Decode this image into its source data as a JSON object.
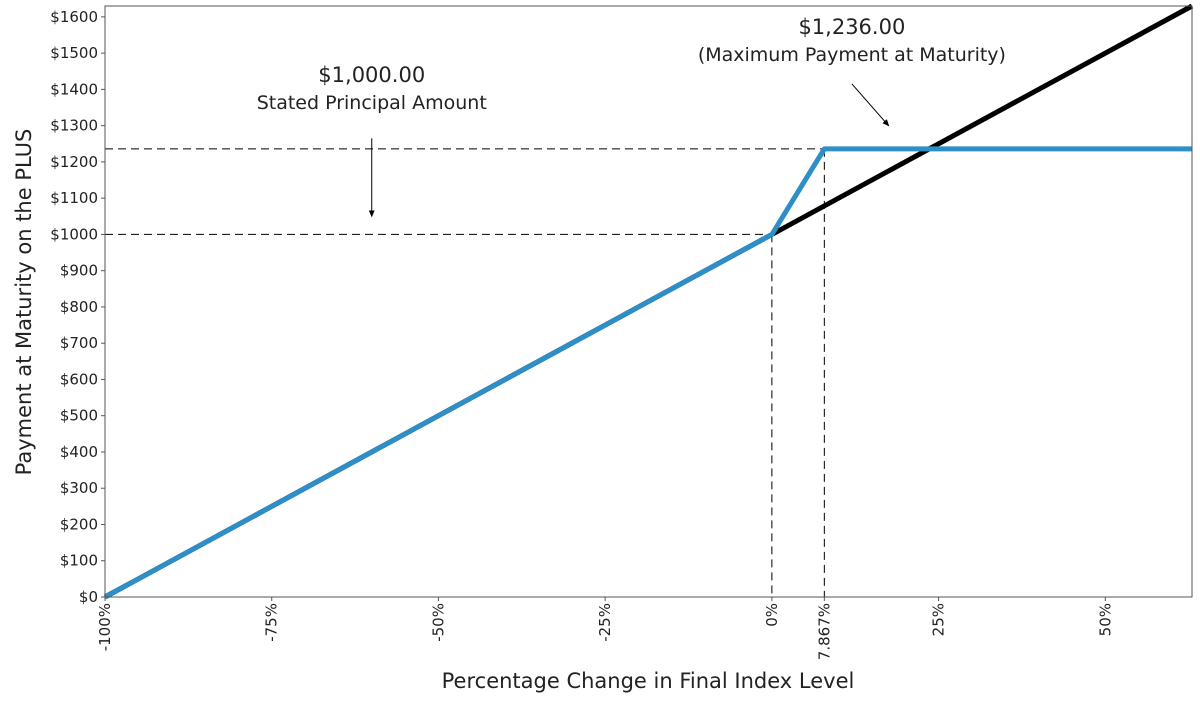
{
  "chart_data": {
    "type": "line",
    "title": "",
    "xlabel": "Percentage Change in Final Index Level",
    "ylabel": "Payment at Maturity on the PLUS",
    "xlim": [
      -100,
      63
    ],
    "ylim": [
      0,
      1630
    ],
    "x_ticks": [
      {
        "value": -100,
        "label": "-100%"
      },
      {
        "value": -75,
        "label": "-75%"
      },
      {
        "value": -50,
        "label": "-50%"
      },
      {
        "value": -25,
        "label": "-25%"
      },
      {
        "value": 0,
        "label": "0%"
      },
      {
        "value": 7.867,
        "label": "7.867%"
      },
      {
        "value": 25,
        "label": "25%"
      },
      {
        "value": 50,
        "label": "50%"
      }
    ],
    "y_ticks": [
      {
        "value": 0,
        "label": "$0"
      },
      {
        "value": 100,
        "label": "$100"
      },
      {
        "value": 200,
        "label": "$200"
      },
      {
        "value": 300,
        "label": "$300"
      },
      {
        "value": 400,
        "label": "$400"
      },
      {
        "value": 500,
        "label": "$500"
      },
      {
        "value": 600,
        "label": "$600"
      },
      {
        "value": 700,
        "label": "$700"
      },
      {
        "value": 800,
        "label": "$800"
      },
      {
        "value": 900,
        "label": "$900"
      },
      {
        "value": 1000,
        "label": "$1000"
      },
      {
        "value": 1100,
        "label": "$1100"
      },
      {
        "value": 1200,
        "label": "$1200"
      },
      {
        "value": 1300,
        "label": "$1300"
      },
      {
        "value": 1400,
        "label": "$1400"
      },
      {
        "value": 1500,
        "label": "$1500"
      },
      {
        "value": 1600,
        "label": "$1600"
      }
    ],
    "series": [
      {
        "color": "#000000",
        "points": [
          [
            -100,
            0
          ],
          [
            63,
            1630
          ]
        ]
      },
      {
        "color": "#2e8fc8",
        "points": [
          [
            -100,
            0
          ],
          [
            0,
            1000
          ],
          [
            7.867,
            1236
          ],
          [
            63,
            1236
          ]
        ]
      }
    ],
    "reference_lines": [
      {
        "orientation": "horizontal",
        "value": 1236
      },
      {
        "orientation": "horizontal",
        "value": 1000
      },
      {
        "orientation": "vertical",
        "value": 0
      },
      {
        "orientation": "vertical",
        "value": 7.867
      }
    ],
    "annotations": [
      {
        "id": "principal",
        "value_text": "$1,000.00",
        "text": "Stated Principal Amount",
        "label_x": -60,
        "label_y": 1420,
        "arrow_from": [
          -60,
          1265
        ],
        "arrow_to": [
          -60,
          1050
        ]
      },
      {
        "id": "maximum",
        "value_text": "$1,236.00",
        "text": "(Maximum Payment at Maturity)",
        "label_x": 12,
        "label_y": 1553,
        "arrow_from": [
          12,
          1415
        ],
        "arrow_to": [
          17.5,
          1300
        ]
      }
    ],
    "grid": false,
    "legend": "none"
  }
}
